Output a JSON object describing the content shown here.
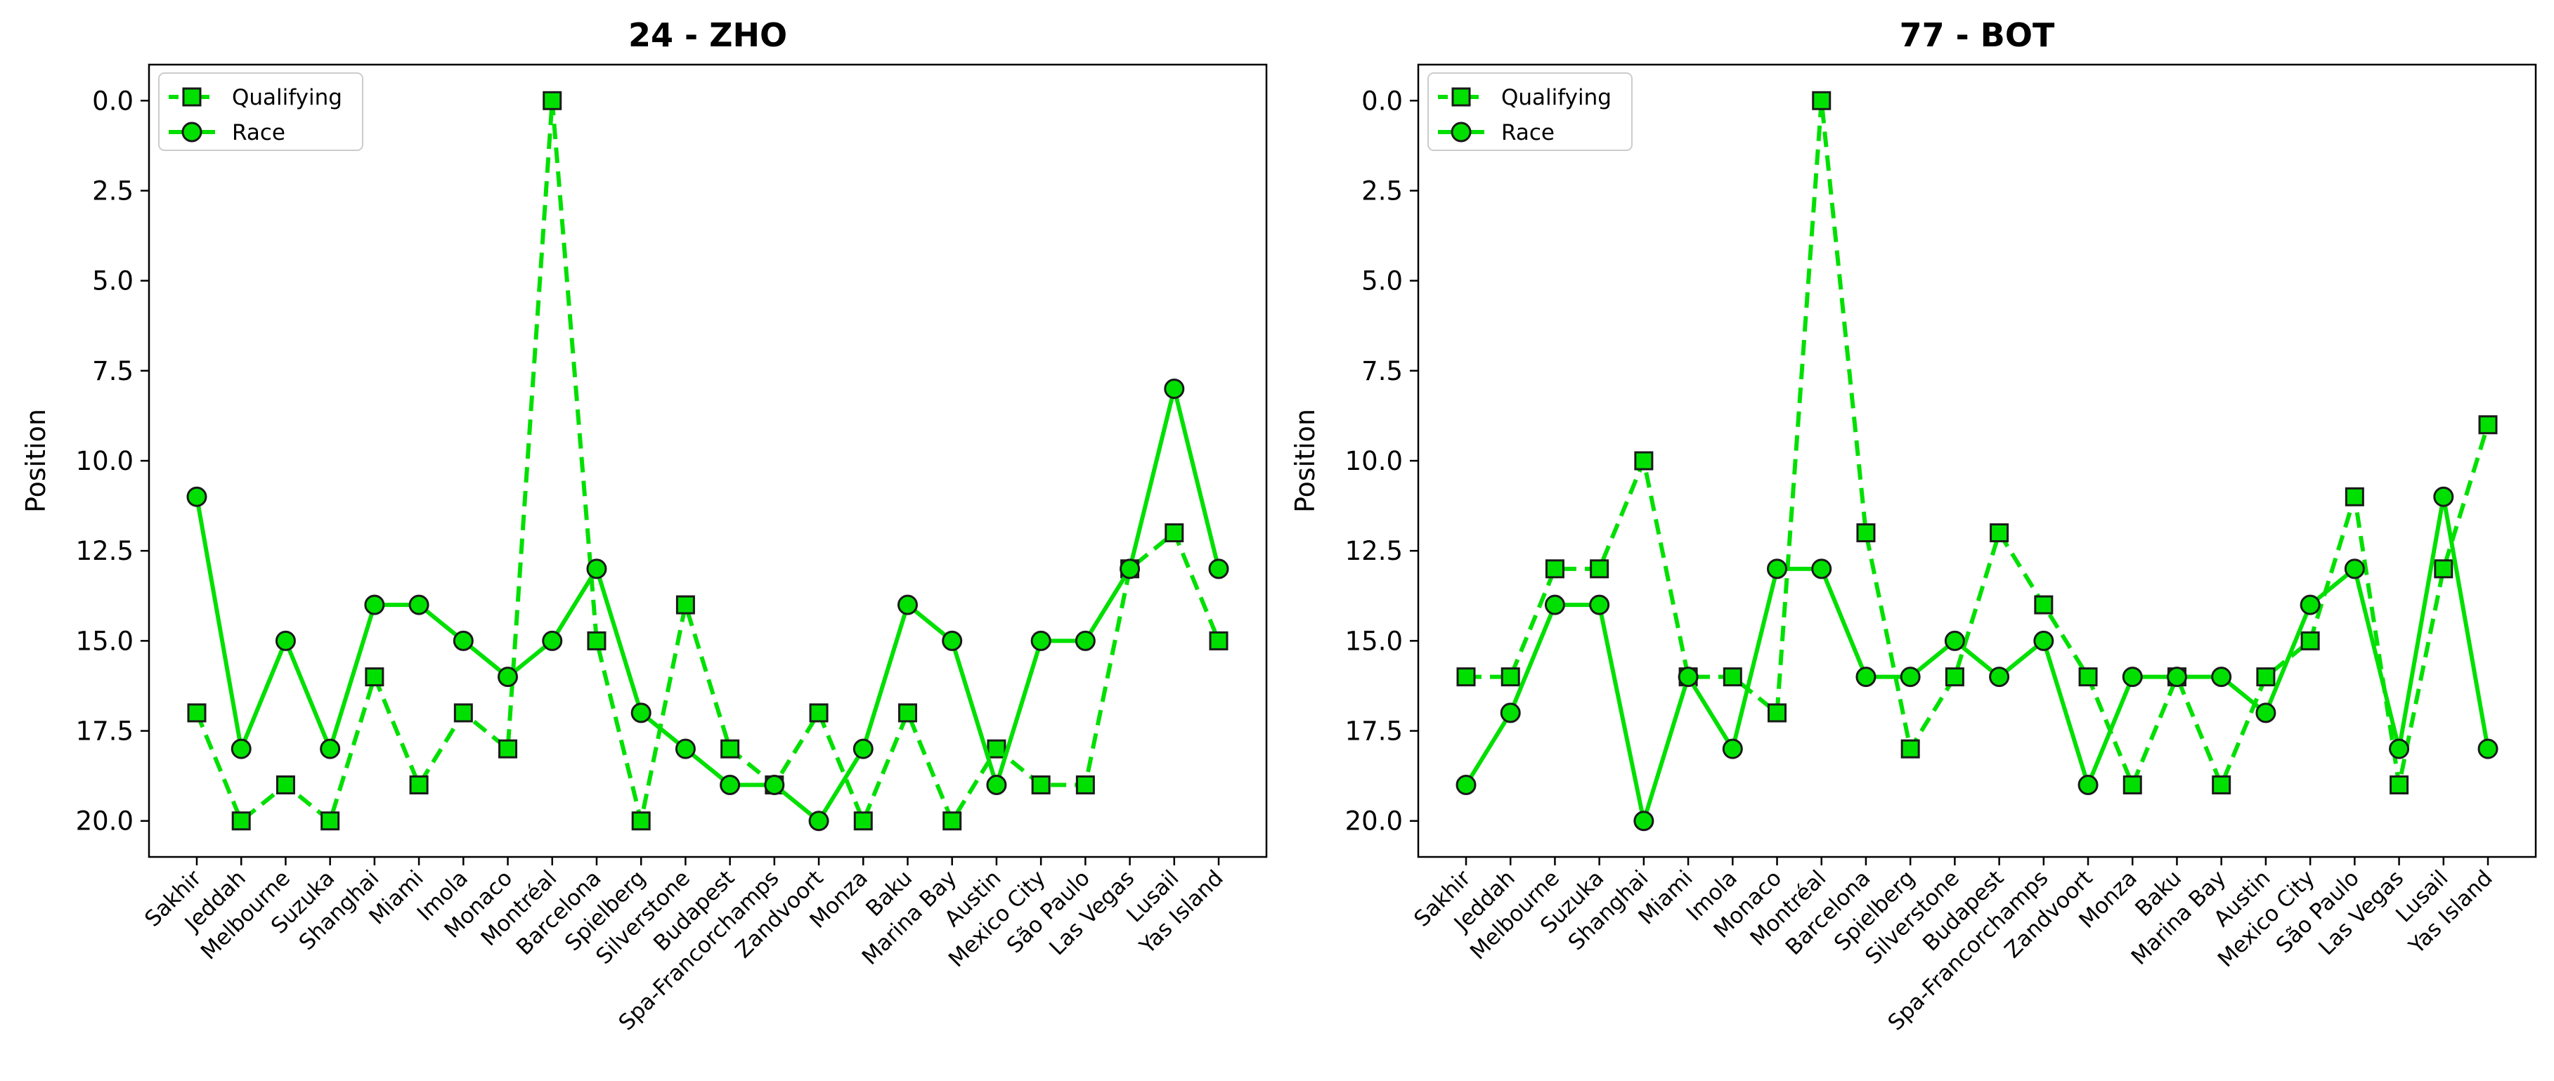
{
  "figure": {
    "colors": {
      "series": "#00e000",
      "marker_edge": "#1a1a1a",
      "axes": "#000000",
      "background": "#ffffff"
    },
    "categories": [
      "Sakhir",
      "Jeddah",
      "Melbourne",
      "Suzuka",
      "Shanghai",
      "Miami",
      "Imola",
      "Monaco",
      "Montréal",
      "Barcelona",
      "Spielberg",
      "Silverstone",
      "Budapest",
      "Spa-Francorchamps",
      "Zandvoort",
      "Monza",
      "Baku",
      "Marina Bay",
      "Austin",
      "Mexico City",
      "São Paulo",
      "Las Vegas",
      "Lusail",
      "Yas Island"
    ]
  },
  "chart_data": [
    {
      "type": "line",
      "title": "24 - ZHO",
      "xlabel": "",
      "ylabel": "Position",
      "ylim": [
        21,
        -1
      ],
      "y_inverted": true,
      "yticks": [
        "0.0",
        "2.5",
        "5.0",
        "7.5",
        "10.0",
        "12.5",
        "15.0",
        "17.5",
        "20.0"
      ],
      "ytick_values": [
        0,
        2.5,
        5,
        7.5,
        10,
        12.5,
        15,
        17.5,
        20
      ],
      "grid": false,
      "legend_position": "top-left",
      "series": [
        {
          "name": "Qualifying",
          "style": "dashed",
          "marker": "square",
          "values": [
            17,
            20,
            19,
            20,
            16,
            19,
            17,
            18,
            0,
            15,
            20,
            14,
            18,
            19,
            17,
            20,
            17,
            20,
            18,
            19,
            19,
            13,
            12,
            15
          ]
        },
        {
          "name": "Race",
          "style": "solid",
          "marker": "circle",
          "values": [
            11,
            18,
            15,
            18,
            14,
            14,
            15,
            16,
            15,
            13,
            17,
            18,
            19,
            19,
            20,
            18,
            14,
            15,
            19,
            15,
            15,
            13,
            8,
            13
          ]
        }
      ]
    },
    {
      "type": "line",
      "title": "77 - BOT",
      "xlabel": "",
      "ylabel": "Position",
      "ylim": [
        21,
        -1
      ],
      "y_inverted": true,
      "yticks": [
        "0.0",
        "2.5",
        "5.0",
        "7.5",
        "10.0",
        "12.5",
        "15.0",
        "17.5",
        "20.0"
      ],
      "ytick_values": [
        0,
        2.5,
        5,
        7.5,
        10,
        12.5,
        15,
        17.5,
        20
      ],
      "grid": false,
      "legend_position": "top-left",
      "series": [
        {
          "name": "Qualifying",
          "style": "dashed",
          "marker": "square",
          "values": [
            16,
            16,
            13,
            13,
            10,
            16,
            16,
            17,
            0,
            12,
            18,
            16,
            12,
            14,
            16,
            19,
            16,
            19,
            16,
            15,
            11,
            19,
            13,
            9
          ]
        },
        {
          "name": "Race",
          "style": "solid",
          "marker": "circle",
          "values": [
            19,
            17,
            14,
            14,
            20,
            16,
            18,
            13,
            13,
            16,
            16,
            15,
            16,
            15,
            19,
            16,
            16,
            16,
            17,
            14,
            13,
            18,
            11,
            18
          ]
        }
      ]
    }
  ]
}
